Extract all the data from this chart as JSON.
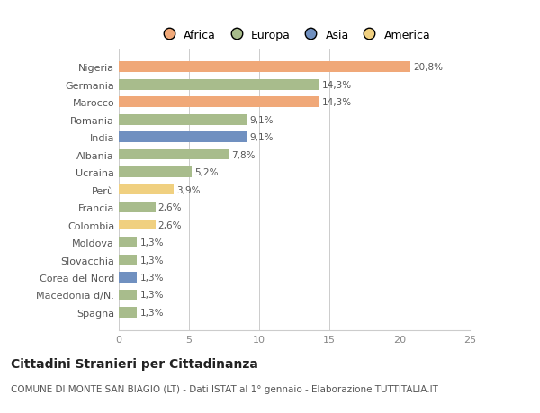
{
  "categories": [
    "Nigeria",
    "Germania",
    "Marocco",
    "Romania",
    "India",
    "Albania",
    "Ucraina",
    "Perù",
    "Francia",
    "Colombia",
    "Moldova",
    "Slovacchia",
    "Corea del Nord",
    "Macedonia d/N.",
    "Spagna"
  ],
  "values": [
    20.8,
    14.3,
    14.3,
    9.1,
    9.1,
    7.8,
    5.2,
    3.9,
    2.6,
    2.6,
    1.3,
    1.3,
    1.3,
    1.3,
    1.3
  ],
  "labels": [
    "20,8%",
    "14,3%",
    "14,3%",
    "9,1%",
    "9,1%",
    "7,8%",
    "5,2%",
    "3,9%",
    "2,6%",
    "2,6%",
    "1,3%",
    "1,3%",
    "1,3%",
    "1,3%",
    "1,3%"
  ],
  "colors": [
    "#F0A878",
    "#A8BC8C",
    "#F0A878",
    "#A8BC8C",
    "#7090C0",
    "#A8BC8C",
    "#A8BC8C",
    "#F0D080",
    "#A8BC8C",
    "#F0D080",
    "#A8BC8C",
    "#A8BC8C",
    "#7090C0",
    "#A8BC8C",
    "#A8BC8C"
  ],
  "legend_labels": [
    "Africa",
    "Europa",
    "Asia",
    "America"
  ],
  "legend_colors": [
    "#F0A878",
    "#A8BC8C",
    "#7090C0",
    "#F0D080"
  ],
  "title": "Cittadini Stranieri per Cittadinanza",
  "subtitle": "COMUNE DI MONTE SAN BIAGIO (LT) - Dati ISTAT al 1° gennaio - Elaborazione TUTTITALIA.IT",
  "xlim": [
    0,
    25
  ],
  "xticks": [
    0,
    5,
    10,
    15,
    20,
    25
  ],
  "bg_color": "#ffffff",
  "grid_color": "#cccccc",
  "bar_height": 0.6,
  "title_fontsize": 10,
  "subtitle_fontsize": 7.5,
  "label_fontsize": 7.5,
  "tick_fontsize": 8,
  "legend_fontsize": 9
}
